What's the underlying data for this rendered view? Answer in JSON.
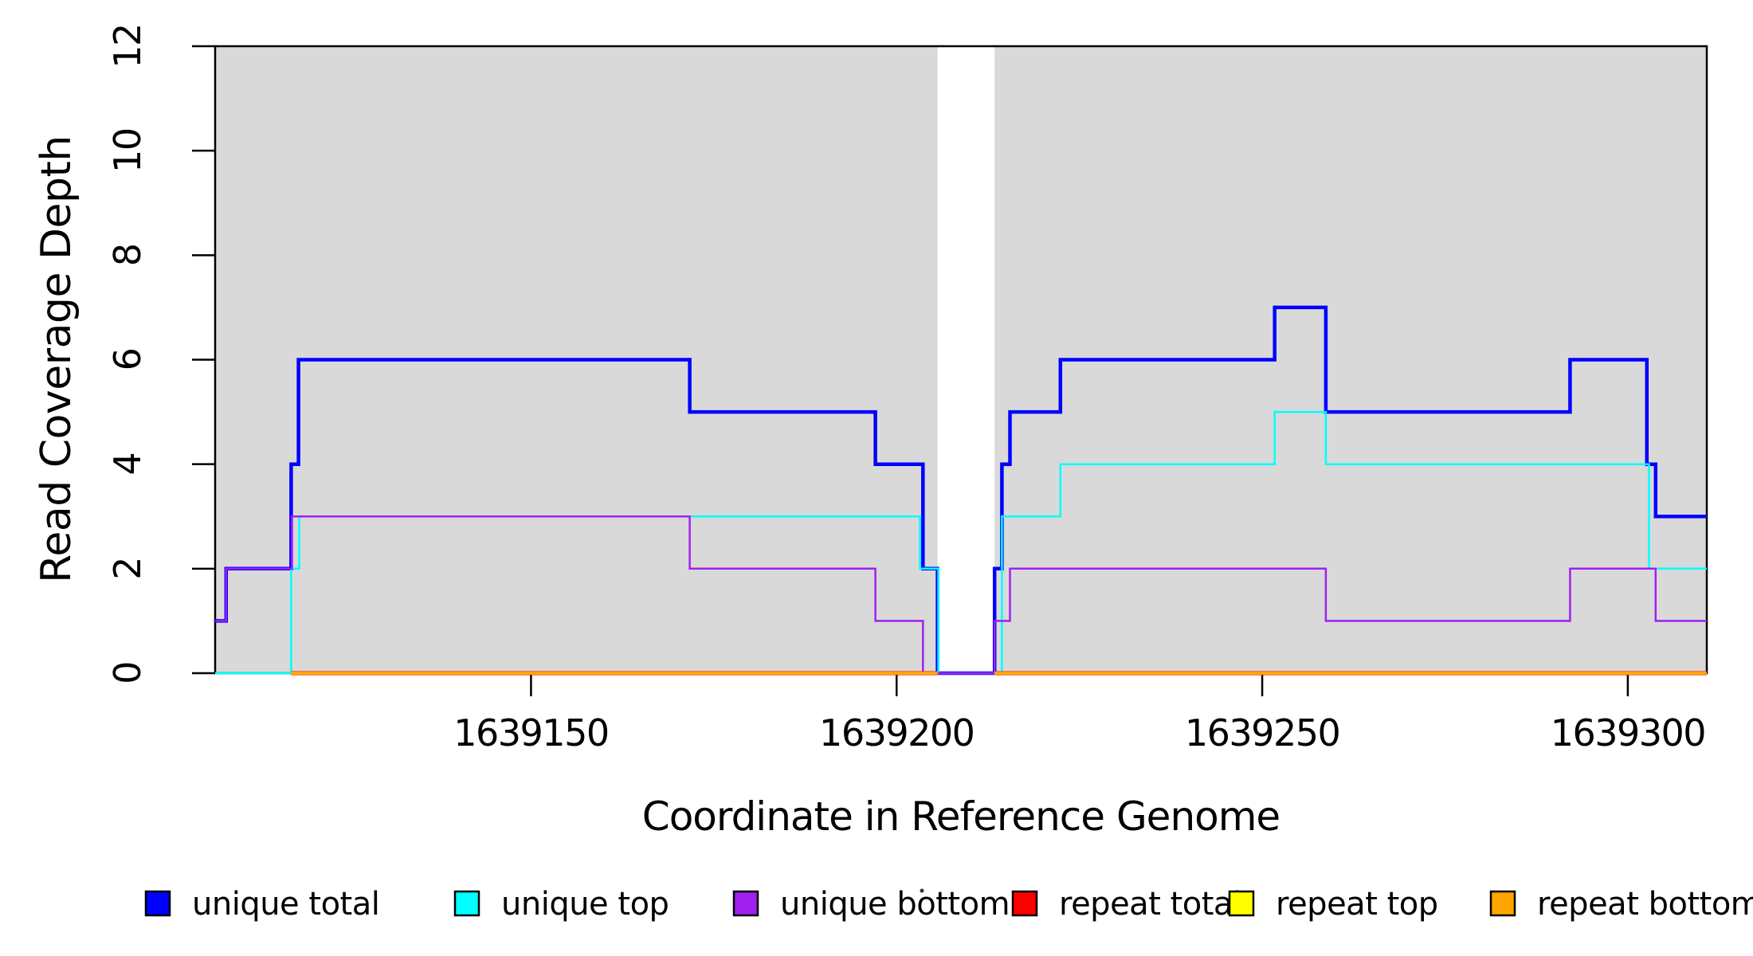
{
  "figure": {
    "background": "#FFFFFF",
    "plot_box_color": "#000000"
  },
  "chart_data": {
    "type": "line",
    "subtype": "step",
    "title": "",
    "xlabel": "Coordinate in Reference Genome",
    "ylabel": "Read Coverage Depth",
    "xlim": [
      1639106.8,
      1639310.8
    ],
    "ylim": [
      0,
      12
    ],
    "x_ticks": [
      1639150,
      1639200,
      1639250,
      1639300
    ],
    "y_ticks": [
      0,
      2,
      4,
      6,
      8,
      10,
      12
    ],
    "grid": false,
    "region_fill": "#D9D9D9",
    "reference_regions": [
      [
        1639106.8,
        1639205.6
      ],
      [
        1639213.4,
        1639310.8
      ]
    ],
    "series": [
      {
        "id": "unique-total",
        "name": "unique total",
        "color": "#0000FF",
        "width": 4.5,
        "domain": [
          1639106.8,
          1639310.8
        ],
        "start_value": 1,
        "steps": [
          [
            1639108.3,
            2
          ],
          [
            1639117.2,
            4
          ],
          [
            1639118.2,
            6
          ],
          [
            1639171.7,
            5
          ],
          [
            1639197.1,
            4
          ],
          [
            1639203.6,
            2
          ],
          [
            1639205.6,
            0
          ],
          [
            1639213.4,
            2
          ],
          [
            1639214.4,
            4
          ],
          [
            1639215.5,
            5
          ],
          [
            1639222.4,
            6
          ],
          [
            1639251.7,
            7
          ],
          [
            1639258.7,
            5
          ],
          [
            1639292.1,
            6
          ],
          [
            1639302.6,
            4
          ],
          [
            1639303.8,
            3
          ]
        ]
      },
      {
        "id": "unique-top",
        "name": "unique top",
        "color": "#00FFFF",
        "width": 2.5,
        "domain": [
          1639106.8,
          1639310.8
        ],
        "start_value": 0,
        "steps": [
          [
            1639117.2,
            2
          ],
          [
            1639118.3,
            3
          ],
          [
            1639203.2,
            2
          ],
          [
            1639205.7,
            0
          ],
          [
            1639214.4,
            3
          ],
          [
            1639222.4,
            4
          ],
          [
            1639251.7,
            5
          ],
          [
            1639258.7,
            4
          ],
          [
            1639302.9,
            2
          ]
        ]
      },
      {
        "id": "unique-bottom",
        "name": "unique bottom",
        "color": "#A020F0",
        "width": 2.5,
        "domain": [
          1639106.8,
          1639310.8
        ],
        "start_value": 1,
        "steps": [
          [
            1639108.3,
            2
          ],
          [
            1639117.3,
            3
          ],
          [
            1639171.7,
            2
          ],
          [
            1639197.1,
            1
          ],
          [
            1639203.6,
            0
          ],
          [
            1639213.4,
            1
          ],
          [
            1639215.5,
            2
          ],
          [
            1639258.7,
            1
          ],
          [
            1639292.1,
            2
          ],
          [
            1639303.8,
            1
          ]
        ]
      },
      {
        "id": "repeat-total",
        "name": "repeat total",
        "color": "#FF0000",
        "width": 5,
        "value": 0,
        "segments": [
          [
            1639117.2,
            1639205.6
          ],
          [
            1639213.4,
            1639310.8
          ]
        ]
      },
      {
        "id": "repeat-top",
        "name": "repeat top",
        "color": "#FFFF00",
        "width": 4,
        "value": 0,
        "segments": [
          [
            1639117.2,
            1639205.6
          ],
          [
            1639213.4,
            1639310.8
          ]
        ]
      },
      {
        "id": "repeat-bottom",
        "name": "repeat bottom",
        "color": "#FFA500",
        "width": 4,
        "value": 0,
        "segments": [
          [
            1639117.2,
            1639205.6
          ],
          [
            1639213.4,
            1639310.8
          ]
        ]
      }
    ],
    "legend": {
      "position": "bottom",
      "items": [
        {
          "id": "unique-total",
          "label": "unique total",
          "color": "#0000FF"
        },
        {
          "id": "unique-top",
          "label": "unique top",
          "color": "#00FFFF"
        },
        {
          "id": "unique-bottom",
          "label": "unique bottom",
          "color": "#A020F0"
        },
        {
          "id": "repeat-total",
          "label": "repeat total",
          "color": "#FF0000"
        },
        {
          "id": "repeat-top",
          "label": "repeat top",
          "color": "#FFFF00"
        },
        {
          "id": "repeat-bottom",
          "label": "repeat bottom",
          "color": "#FFA500"
        }
      ]
    }
  }
}
